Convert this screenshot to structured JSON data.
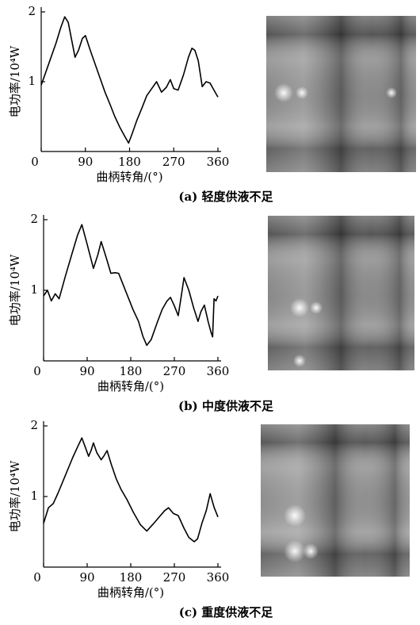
{
  "chart_data": [
    {
      "type": "line",
      "caption": "(a) 轻度供液不足",
      "ylabel": "电功率/10⁴W",
      "xlabel": "曲柄转角/(°)",
      "xlim": [
        0,
        360
      ],
      "xticks": [
        0,
        90,
        180,
        270,
        360
      ],
      "ylim": [
        0,
        2
      ],
      "yticks": [
        1,
        2
      ],
      "color": "#000000",
      "x": [
        0,
        10,
        20,
        30,
        40,
        48,
        55,
        62,
        69,
        76,
        84,
        90,
        100,
        110,
        120,
        130,
        140,
        150,
        160,
        170,
        178,
        185,
        195,
        205,
        215,
        225,
        235,
        245,
        255,
        263,
        270,
        279,
        290,
        300,
        307,
        313,
        320,
        328,
        336,
        344,
        352,
        360
      ],
      "values": [
        0.95,
        1.15,
        1.35,
        1.55,
        1.78,
        1.93,
        1.85,
        1.6,
        1.35,
        1.45,
        1.62,
        1.66,
        1.45,
        1.25,
        1.05,
        0.85,
        0.68,
        0.5,
        0.35,
        0.22,
        0.12,
        0.25,
        0.45,
        0.62,
        0.8,
        0.9,
        1.0,
        0.85,
        0.92,
        1.03,
        0.9,
        0.88,
        1.1,
        1.35,
        1.48,
        1.45,
        1.3,
        0.93,
        1.0,
        0.98,
        0.88,
        0.78
      ]
    },
    {
      "type": "line",
      "caption": "(b) 中度供液不足",
      "ylabel": "电功率/10⁴W",
      "xlabel": "曲柄转角/(°)",
      "xlim": [
        0,
        360
      ],
      "xticks": [
        0,
        90,
        180,
        270,
        360
      ],
      "ylim": [
        0,
        2
      ],
      "yticks": [
        1,
        2
      ],
      "color": "#000000",
      "x": [
        0,
        8,
        16,
        24,
        32,
        45,
        60,
        70,
        79,
        90,
        103,
        112,
        119,
        130,
        139,
        148,
        155,
        170,
        185,
        196,
        205,
        213,
        222,
        235,
        245,
        255,
        262,
        270,
        278,
        285,
        290,
        300,
        310,
        319,
        325,
        332,
        340,
        346,
        349,
        352,
        356,
        360
      ],
      "values": [
        0.92,
        1.0,
        0.85,
        0.95,
        0.88,
        1.2,
        1.55,
        1.78,
        1.93,
        1.65,
        1.31,
        1.5,
        1.69,
        1.45,
        1.24,
        1.25,
        1.24,
        0.98,
        0.72,
        0.56,
        0.35,
        0.22,
        0.3,
        0.55,
        0.73,
        0.85,
        0.9,
        0.78,
        0.64,
        0.95,
        1.18,
        1.0,
        0.75,
        0.56,
        0.7,
        0.79,
        0.55,
        0.4,
        0.34,
        0.88,
        0.85,
        0.92
      ]
    },
    {
      "type": "line",
      "caption": "(c) 重度供液不足",
      "ylabel": "电功率/10⁴W",
      "xlabel": "曲柄转角/(°)",
      "xlim": [
        0,
        360
      ],
      "xticks": [
        0,
        90,
        180,
        270,
        360
      ],
      "ylim": [
        0,
        2
      ],
      "yticks": [
        1,
        2
      ],
      "color": "#000000",
      "x": [
        0,
        10,
        20,
        30,
        45,
        60,
        70,
        79,
        86,
        93,
        98,
        103,
        110,
        119,
        125,
        131,
        140,
        150,
        160,
        172,
        185,
        200,
        213,
        225,
        240,
        250,
        258,
        268,
        278,
        290,
        300,
        311,
        318,
        327,
        336,
        344,
        352,
        360
      ],
      "values": [
        0.62,
        0.84,
        0.9,
        1.05,
        1.3,
        1.55,
        1.7,
        1.83,
        1.7,
        1.57,
        1.65,
        1.76,
        1.62,
        1.52,
        1.58,
        1.65,
        1.45,
        1.25,
        1.1,
        0.96,
        0.78,
        0.6,
        0.51,
        0.6,
        0.72,
        0.8,
        0.84,
        0.76,
        0.73,
        0.55,
        0.42,
        0.36,
        0.4,
        0.62,
        0.8,
        1.04,
        0.85,
        0.71
      ]
    }
  ]
}
